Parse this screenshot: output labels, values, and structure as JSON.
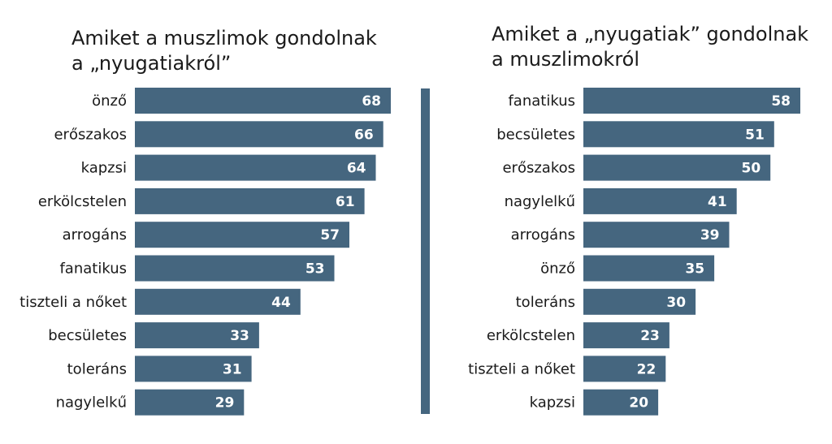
{
  "colors": {
    "bar": "#45667f",
    "divider": "#45667f",
    "text": "#1a1a1a",
    "value_text": "#ffffff"
  },
  "chart_data": [
    {
      "type": "bar",
      "orientation": "horizontal",
      "title": [
        "Amiket a muszlimok gondolnak",
        "a „nyugatiakról”"
      ],
      "categories": [
        "önző",
        "erőszakos",
        "kapzsi",
        "erkölcstelen",
        "arrogáns",
        "fanatikus",
        "tiszteli a nőket",
        "becsületes",
        "toleráns",
        "nagylelkű"
      ],
      "values": [
        68,
        66,
        64,
        61,
        57,
        53,
        44,
        33,
        31,
        29
      ],
      "data_labels": true,
      "grid": false
    },
    {
      "type": "bar",
      "orientation": "horizontal",
      "title": [
        "Amiket a „nyugatiak” gondolnak",
        "a muszlimokról"
      ],
      "categories": [
        "fanatikus",
        "becsületes",
        "erőszakos",
        "nagylelkű",
        "arrogáns",
        "önző",
        "toleráns",
        "erkölcstelen",
        "tiszteli a nőket",
        "kapzsi"
      ],
      "values": [
        58,
        51,
        50,
        41,
        39,
        35,
        30,
        23,
        22,
        20
      ],
      "data_labels": true,
      "grid": false
    }
  ]
}
